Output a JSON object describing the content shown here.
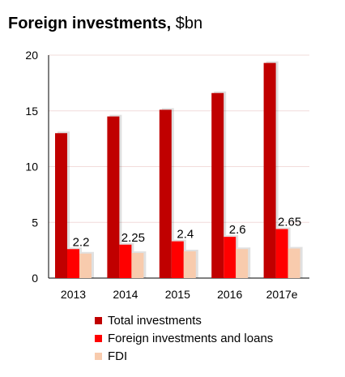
{
  "chart_data": {
    "type": "bar",
    "title": "Foreign investments,",
    "title_unit": "$bn",
    "categories": [
      "2013",
      "2014",
      "2015",
      "2016",
      "2017e"
    ],
    "series": [
      {
        "name": "Total investments",
        "values": [
          13.0,
          14.5,
          15.1,
          16.6,
          19.3
        ],
        "color": "#C00000"
      },
      {
        "name": "Foreign investments and loans",
        "values": [
          2.6,
          3.0,
          3.3,
          3.7,
          4.4
        ],
        "color": "#FF0000"
      },
      {
        "name": "FDI",
        "values": [
          2.2,
          2.25,
          2.4,
          2.6,
          2.65
        ],
        "color": "#F8CBAD"
      }
    ],
    "data_labels": [
      "2.2",
      "2.25",
      "2.4",
      "2.6",
      "2.65"
    ],
    "ylim": [
      0,
      20
    ],
    "yticks": [
      "0",
      "5",
      "10",
      "15",
      "20"
    ],
    "grid": true,
    "legend_position": "bottom"
  }
}
